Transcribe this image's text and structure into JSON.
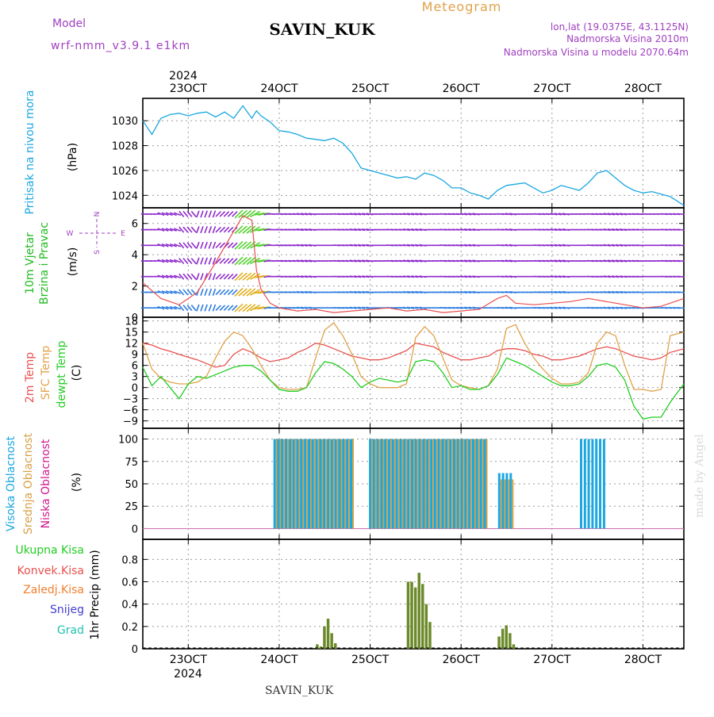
{
  "header": {
    "model_label": "Model",
    "model_name": "wrf-nmm_v3.9.1 e1km",
    "station": "SAVIN_KUK",
    "chart_kind": "Meteogram",
    "lonlat": "lon,lat (19.0375E, 43.1125N)",
    "elevation": "Nadmorska Visina 2010m",
    "model_elevation": "Nadmorska Visina u modelu 2070.64m"
  },
  "footer": {
    "station": "SAVIN_KUK",
    "watermark": "made by Angel"
  },
  "colors": {
    "pressure": "#1ba7e0",
    "temp2m": "#e8504f",
    "sfc": "#e0a24a",
    "dewpt": "#22cc22",
    "high_cloud": "#1ba7e0",
    "mid_cloud": "#d8a046",
    "low_cloud": "#d01890",
    "precip_total": "#6b8a2a",
    "precip_conv": "#e8504f",
    "snow": "#4040d0",
    "grad": "#20c0b0",
    "wind_label": "#20bb20",
    "compass": "#a040c0",
    "wind_arrow": "#8e2bcc"
  },
  "chart_data": [
    {
      "type": "line",
      "name": "pressure",
      "ylabel_lines": [
        "Pritisak na nivou mora",
        "(hPa)"
      ],
      "year_label": "2024",
      "x_ticks": [
        "23OCT",
        "24OCT",
        "25OCT",
        "26OCT",
        "27OCT",
        "28OCT"
      ],
      "x_tick_days": [
        23,
        24,
        25,
        26,
        27,
        28
      ],
      "xlim": [
        22.5,
        28.45
      ],
      "ylim": [
        1023,
        1031.8
      ],
      "y_ticks": [
        1024,
        1026,
        1028,
        1030
      ],
      "grid": true,
      "x": [
        22.5,
        22.6,
        22.7,
        22.8,
        22.9,
        23.0,
        23.1,
        23.2,
        23.3,
        23.4,
        23.5,
        23.6,
        23.7,
        23.75,
        23.8,
        23.9,
        24.0,
        24.1,
        24.2,
        24.3,
        24.4,
        24.5,
        24.6,
        24.7,
        24.8,
        24.9,
        25.0,
        25.1,
        25.2,
        25.3,
        25.4,
        25.5,
        25.6,
        25.7,
        25.8,
        25.9,
        26.0,
        26.1,
        26.2,
        26.3,
        26.4,
        26.5,
        26.6,
        26.7,
        26.8,
        26.9,
        27.0,
        27.1,
        27.2,
        27.3,
        27.4,
        27.5,
        27.6,
        27.7,
        27.8,
        27.9,
        28.0,
        28.1,
        28.2,
        28.3,
        28.45
      ],
      "values": [
        1030.0,
        1028.9,
        1030.2,
        1030.5,
        1030.6,
        1030.4,
        1030.6,
        1030.7,
        1030.3,
        1030.7,
        1030.2,
        1031.2,
        1030.2,
        1030.8,
        1030.4,
        1029.9,
        1029.2,
        1029.1,
        1028.9,
        1028.6,
        1028.5,
        1028.4,
        1028.6,
        1028.2,
        1027.4,
        1026.2,
        1026.0,
        1025.8,
        1025.6,
        1025.4,
        1025.5,
        1025.3,
        1025.8,
        1025.6,
        1025.2,
        1024.6,
        1024.6,
        1024.2,
        1024.0,
        1023.7,
        1024.4,
        1024.8,
        1024.9,
        1025.0,
        1024.6,
        1024.2,
        1024.4,
        1024.8,
        1024.6,
        1024.4,
        1025.0,
        1025.8,
        1026.0,
        1025.4,
        1024.8,
        1024.4,
        1024.2,
        1024.3,
        1024.1,
        1023.9,
        1023.2
      ]
    },
    {
      "type": "line",
      "name": "wind",
      "ylabel_lines": [
        "10m Vjetar",
        "Brzina i Pravac",
        "(m/s)"
      ],
      "compass": {
        "n": "N",
        "w": "W",
        "e": "E",
        "s": "S"
      },
      "xlim": [
        22.5,
        28.45
      ],
      "ylim": [
        0,
        7
      ],
      "y_ticks": [
        0,
        2,
        4,
        6
      ],
      "x_tick_days": [
        23,
        24,
        25,
        26,
        27,
        28
      ],
      "grid": true,
      "speed_x": [
        22.5,
        22.7,
        22.9,
        23.1,
        23.3,
        23.5,
        23.6,
        23.7,
        23.75,
        23.8,
        23.9,
        24.0,
        24.2,
        24.4,
        24.6,
        24.8,
        25.0,
        25.2,
        25.4,
        25.6,
        25.8,
        26.0,
        26.2,
        26.4,
        26.5,
        26.6,
        26.8,
        27.0,
        27.2,
        27.4,
        27.6,
        27.8,
        28.0,
        28.2,
        28.45
      ],
      "speed": [
        2.2,
        1.2,
        0.8,
        1.6,
        3.5,
        5.5,
        6.5,
        6.2,
        3.0,
        1.8,
        0.9,
        0.6,
        0.4,
        0.5,
        0.3,
        0.4,
        0.5,
        0.6,
        0.4,
        0.5,
        0.3,
        0.4,
        0.5,
        1.2,
        1.4,
        0.9,
        0.8,
        0.9,
        1.0,
        1.2,
        1.0,
        0.8,
        0.6,
        0.7,
        1.2
      ],
      "direction_deg": [
        90,
        110,
        140,
        200,
        225,
        225,
        230,
        240,
        260,
        80,
        90,
        95,
        100,
        90,
        95,
        100,
        90,
        95,
        100,
        90,
        95,
        100,
        90,
        95,
        100,
        90,
        95,
        100,
        90,
        95,
        100,
        95,
        90,
        95,
        100
      ]
    },
    {
      "type": "line",
      "name": "temperature",
      "ylabel_lines": [
        "2m Temp",
        "SFC Temp",
        "dewpt Temp",
        "(C)"
      ],
      "xlim": [
        22.5,
        28.45
      ],
      "ylim": [
        -11,
        19
      ],
      "y_ticks": [
        -9,
        -6,
        -3,
        0,
        3,
        6,
        9,
        12,
        15,
        18
      ],
      "x_tick_days": [
        23,
        24,
        25,
        26,
        27,
        28
      ],
      "grid": true,
      "x": [
        22.5,
        22.6,
        22.7,
        22.8,
        22.9,
        23.0,
        23.1,
        23.2,
        23.3,
        23.4,
        23.5,
        23.6,
        23.7,
        23.8,
        23.9,
        24.0,
        24.1,
        24.2,
        24.3,
        24.4,
        24.5,
        24.6,
        24.7,
        24.8,
        24.9,
        25.0,
        25.1,
        25.2,
        25.3,
        25.4,
        25.5,
        25.6,
        25.7,
        25.8,
        25.9,
        26.0,
        26.1,
        26.2,
        26.3,
        26.4,
        26.5,
        26.6,
        26.7,
        26.8,
        26.9,
        27.0,
        27.1,
        27.2,
        27.3,
        27.4,
        27.5,
        27.6,
        27.7,
        27.8,
        27.9,
        28.0,
        28.1,
        28.2,
        28.3,
        28.45
      ],
      "series": [
        {
          "name": "2m Temp",
          "values": [
            12.0,
            11.5,
            10.5,
            9.8,
            9.0,
            8.2,
            7.5,
            6.5,
            5.5,
            6.0,
            9.0,
            10.5,
            9.5,
            8.0,
            7.0,
            7.5,
            8.0,
            9.5,
            10.5,
            12.0,
            11.5,
            10.5,
            9.5,
            8.5,
            8.0,
            7.5,
            7.5,
            8.0,
            9.0,
            10.0,
            12.0,
            11.5,
            11.0,
            9.5,
            8.5,
            7.5,
            7.5,
            8.0,
            8.5,
            10.0,
            10.5,
            10.5,
            10.0,
            9.0,
            8.5,
            7.5,
            7.5,
            8.0,
            8.5,
            9.5,
            10.5,
            11.0,
            10.5,
            9.5,
            8.5,
            8.0,
            7.5,
            8.0,
            9.5,
            10.5
          ]
        },
        {
          "name": "SFC Temp",
          "values": [
            12.0,
            5.0,
            2.5,
            1.5,
            1.0,
            1.0,
            1.5,
            3.0,
            8.0,
            12.5,
            15.0,
            14.0,
            10.5,
            6.0,
            2.0,
            0.0,
            -0.5,
            -0.5,
            0.0,
            8.0,
            15.5,
            17.5,
            14.0,
            9.0,
            3.0,
            1.0,
            0.0,
            0.0,
            0.0,
            1.0,
            13.5,
            16.5,
            14.0,
            8.0,
            2.0,
            0.5,
            0.0,
            -0.5,
            0.5,
            5.0,
            16.0,
            17.0,
            12.0,
            8.0,
            5.0,
            2.5,
            1.0,
            1.0,
            1.5,
            4.0,
            12.0,
            15.0,
            14.0,
            6.0,
            -0.5,
            -0.5,
            -1.0,
            -0.5,
            14.0,
            15.0
          ]
        },
        {
          "name": "dewpt Temp",
          "values": [
            5.5,
            0.5,
            3.0,
            0.0,
            -3.0,
            1.0,
            3.0,
            2.5,
            3.5,
            4.5,
            5.5,
            6.0,
            6.0,
            4.5,
            2.0,
            -0.5,
            -1.0,
            -1.0,
            0.0,
            4.0,
            7.0,
            6.5,
            5.0,
            3.0,
            0.0,
            1.5,
            2.5,
            2.0,
            1.5,
            2.0,
            7.0,
            7.5,
            7.0,
            4.0,
            0.0,
            0.5,
            -0.5,
            -0.5,
            0.5,
            3.5,
            8.0,
            7.0,
            6.0,
            4.5,
            3.0,
            1.5,
            0.5,
            0.5,
            1.0,
            3.0,
            6.0,
            6.5,
            5.5,
            2.0,
            -5.0,
            -8.5,
            -8.0,
            -8.0,
            -4.0,
            1.0
          ]
        }
      ]
    },
    {
      "type": "bar",
      "name": "clouds",
      "ylabel_lines": [
        "Visoka Oblacnost",
        "Srednja Oblacnost",
        "Niska Oblacnost",
        "(%)"
      ],
      "xlim": [
        22.5,
        28.45
      ],
      "ylim": [
        -12,
        112
      ],
      "y_ticks": [
        0,
        25,
        50,
        75,
        100
      ],
      "x_tick_days": [
        23,
        24,
        25,
        26,
        27,
        28
      ],
      "grid": true,
      "segments": [
        {
          "start": 23.95,
          "end": 24.8,
          "step": 0.042,
          "high": 100,
          "mid": 100
        },
        {
          "start": 25.0,
          "end": 26.3,
          "step": 0.042,
          "high": 100,
          "mid": 100
        },
        {
          "start": 26.42,
          "end": 26.58,
          "step": 0.042,
          "high": 62,
          "mid": 55
        },
        {
          "start": 27.32,
          "end": 27.58,
          "step": 0.042,
          "high": 100,
          "mid": 0
        }
      ]
    },
    {
      "type": "bar",
      "name": "precipitation",
      "ylabel_lines": [
        "1hr Precip (mm)"
      ],
      "legend": [
        "Ukupna Kisa",
        "Konvek.Kisa",
        "Zaledj.Kisa",
        "Snijeg",
        "Grad"
      ],
      "year_label": "2024",
      "x_ticks": [
        "23OCT",
        "24OCT",
        "25OCT",
        "26OCT",
        "27OCT",
        "28OCT"
      ],
      "x_tick_days": [
        23,
        24,
        25,
        26,
        27,
        28
      ],
      "xlim": [
        22.5,
        28.45
      ],
      "ylim": [
        0,
        0.98
      ],
      "y_ticks": [
        0,
        0.2,
        0.4,
        0.6,
        0.8
      ],
      "y_tick_labels": [
        "0",
        "0.2",
        "0.4",
        "0.6",
        "0.8"
      ],
      "grid": true,
      "x": [
        24.42,
        24.46,
        24.5,
        24.54,
        24.58,
        24.62,
        25.42,
        25.46,
        25.5,
        25.54,
        25.58,
        25.62,
        25.66,
        26.42,
        26.46,
        26.5,
        26.54,
        26.58
      ],
      "values": [
        0.04,
        0.02,
        0.2,
        0.27,
        0.14,
        0.05,
        0.6,
        0.6,
        0.55,
        0.68,
        0.58,
        0.4,
        0.24,
        0.11,
        0.18,
        0.21,
        0.14,
        0.04
      ]
    }
  ]
}
